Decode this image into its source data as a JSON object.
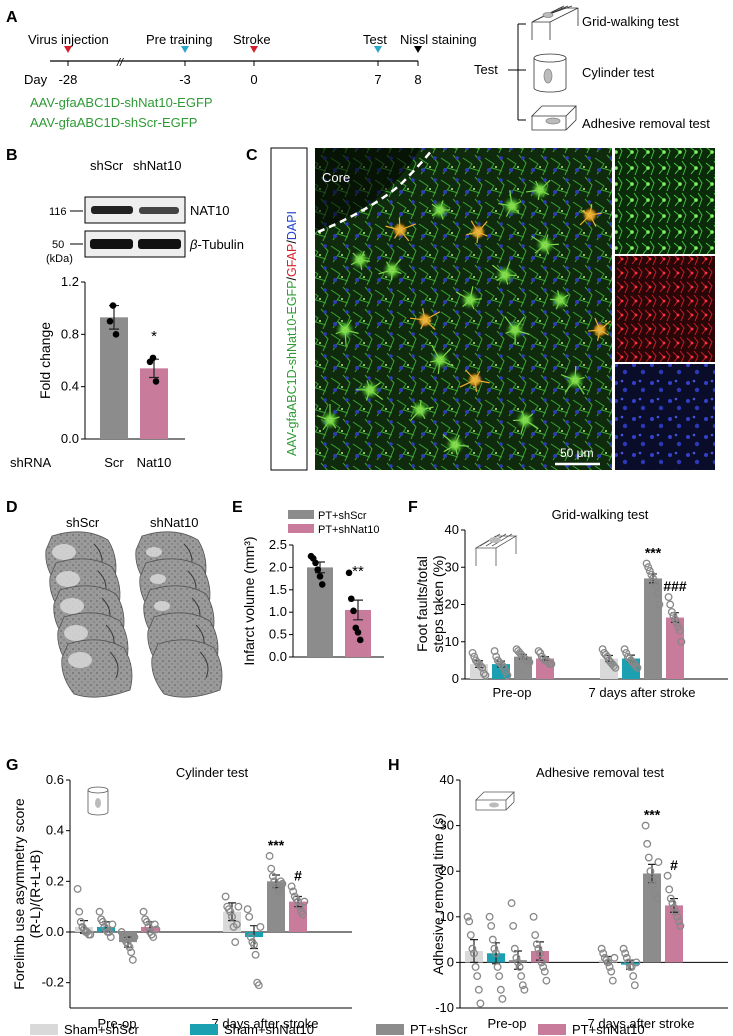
{
  "colors": {
    "sham_shScr": "#d9d9d9",
    "sham_shNat10": "#1aa0b0",
    "pt_shScr": "#8c8c8c",
    "pt_shNat10": "#c97b9c",
    "green_text": "#2e9a35",
    "red_marker": "#d4202c",
    "blue_marker": "#2aa7c9",
    "black": "#000000"
  },
  "panels": {
    "A": {
      "letter": "A",
      "timeline_events": [
        {
          "label": "Virus injection",
          "day": "-28",
          "marker": "red"
        },
        {
          "label": "Pre training",
          "day": "-3",
          "marker": "blue"
        },
        {
          "label": "Stroke",
          "day": "0",
          "marker": "red"
        },
        {
          "label": "Test",
          "day": "7",
          "marker": "blue"
        },
        {
          "label": "Nissl staining",
          "day": "8",
          "marker": "black"
        }
      ],
      "day_label": "Day",
      "break_symbol": "//",
      "virus_1": "AAV-gfaABC1D-shNat10-EGFP",
      "virus_2": "AAV-gfaABC1D-shScr-EGFP",
      "test_label": "Test",
      "tests": [
        "Grid-walking test",
        "Cylinder test",
        "Adhesive removal test"
      ]
    },
    "B": {
      "letter": "B",
      "lane_labels": [
        "shScr",
        "shNat10"
      ],
      "mw_markers": [
        "116",
        "50",
        "(kDa)"
      ],
      "band_labels": [
        "NAT10",
        "β-Tubulin"
      ],
      "beta_symbol": "β",
      "tubulin_text": "-Tubulin",
      "row_label": "shRNA"
    },
    "C": {
      "letter": "C",
      "side_label_parts": [
        "AAV-gfaABC1D-shNat10-EGFP",
        "/",
        "GFAP",
        "/",
        "DAPI"
      ],
      "core_label": "Core",
      "scale_bar": "50 μm"
    },
    "D": {
      "letter": "D",
      "labels": [
        "shScr",
        "shNat10"
      ]
    },
    "E": {
      "letter": "E"
    },
    "F": {
      "letter": "F"
    },
    "G": {
      "letter": "G"
    },
    "H": {
      "letter": "H"
    }
  },
  "legend": {
    "items": [
      {
        "label": "Sham+shScr",
        "color": "#d9d9d9"
      },
      {
        "label": "Sham+shNat10",
        "color": "#1aa0b0"
      },
      {
        "label": "PT+shScr",
        "color": "#8c8c8c"
      },
      {
        "label": "PT+shNat10",
        "color": "#c97b9c"
      }
    ]
  },
  "chart_data": [
    {
      "panel": "B",
      "type": "bar",
      "categories": [
        "Scr",
        "Nat10"
      ],
      "values": [
        0.93,
        0.54
      ],
      "errors": [
        0.09,
        0.07
      ],
      "points": [
        [
          1.02,
          0.9,
          0.8
        ],
        [
          0.62,
          0.59,
          0.44
        ]
      ],
      "ylabel": "Fold change",
      "xlabel": "shRNA",
      "ylim": [
        0,
        1.2
      ],
      "yticks": [
        "0.0",
        "0.4",
        "0.8",
        "1.2"
      ],
      "annotations": [
        "",
        "*"
      ],
      "colors": [
        "#8c8c8c",
        "#c97b9c"
      ]
    },
    {
      "panel": "E",
      "type": "bar",
      "categories": [
        "PT+shScr",
        "PT+shNat10"
      ],
      "values": [
        2.0,
        1.05
      ],
      "errors": [
        0.12,
        0.22
      ],
      "points": [
        [
          2.25,
          2.2,
          2.1,
          1.95,
          1.8,
          1.62
        ],
        [
          1.88,
          1.3,
          1.03,
          0.65,
          0.55,
          0.38
        ]
      ],
      "ylabel": "Infarct volume (mm³)",
      "ylim": [
        0,
        2.5
      ],
      "yticks": [
        "0.0",
        "0.5",
        "1.0",
        "1.5",
        "2.0",
        "2.5"
      ],
      "legend": [
        "PT+shScr",
        "PT+shNat10"
      ],
      "legend_position": "top-right",
      "annotations": [
        "",
        "**"
      ],
      "colors": [
        "#8c8c8c",
        "#c97b9c"
      ]
    },
    {
      "panel": "F",
      "type": "bar",
      "title": "Grid-walking test",
      "groups": [
        "Pre-op",
        "7 days after stroke"
      ],
      "series": [
        {
          "name": "Sham+shScr",
          "values": [
            4.0,
            5.5
          ],
          "errors": [
            0.9,
            0.8
          ],
          "points": [
            [
              7,
              6,
              5,
              4.5,
              4,
              3.5,
              3,
              1.5,
              1
            ],
            [
              8,
              7,
              6.5,
              6,
              5,
              4.5,
              4,
              3.5,
              3
            ]
          ]
        },
        {
          "name": "Sham+shNat10",
          "values": [
            4.0,
            5.5
          ],
          "errors": [
            0.8,
            0.9
          ],
          "points": [
            [
              7.5,
              6,
              5,
              4.5,
              4,
              3.5,
              3,
              2,
              1
            ],
            [
              8,
              7,
              6,
              5.5,
              5,
              4.5,
              4,
              3.5,
              3
            ]
          ]
        },
        {
          "name": "PT+shScr",
          "values": [
            6.0,
            27.0
          ],
          "errors": [
            0.6,
            1.2
          ],
          "points": [
            [
              8,
              7.5,
              7,
              6.5,
              6,
              5.5,
              5,
              5,
              4.5
            ],
            [
              31,
              30,
              29,
              28,
              27,
              26,
              25,
              23,
              20
            ]
          ]
        },
        {
          "name": "PT+shNat10",
          "values": [
            5.5,
            16.5
          ],
          "errors": [
            0.5,
            1.3
          ],
          "points": [
            [
              7.5,
              7,
              6,
              5.5,
              5,
              5,
              4.5,
              4,
              4
            ],
            [
              22,
              20,
              18,
              17,
              16,
              15,
              14,
              13,
              10
            ]
          ]
        }
      ],
      "ylabel": "Foot faults/total steps taken (%)",
      "ylim": [
        0,
        40
      ],
      "yticks": [
        "0",
        "10",
        "20",
        "30",
        "40"
      ],
      "annotations": [
        {
          "group": 1,
          "series": 2,
          "text": "***"
        },
        {
          "group": 1,
          "series": 3,
          "text": "###"
        }
      ]
    },
    {
      "panel": "G",
      "type": "bar",
      "title": "Cylinder test",
      "groups": [
        "Pre-op",
        "7 days after stroke"
      ],
      "series": [
        {
          "name": "Sham+shScr",
          "values": [
            0.02,
            0.08
          ],
          "errors": [
            0.025,
            0.035
          ],
          "points": [
            [
              0.17,
              0.08,
              0.04,
              0.02,
              0.01,
              0.0,
              0.0,
              -0.01,
              -0.01
            ],
            [
              0.14,
              0.1,
              0.09,
              0.08,
              0.06,
              0.02,
              -0.04,
              0.03,
              0.1
            ]
          ]
        },
        {
          "name": "Sham+shNat10",
          "values": [
            0.02,
            -0.02
          ],
          "errors": [
            0.02,
            0.045
          ],
          "points": [
            [
              0.08,
              0.05,
              0.04,
              0.02,
              0.01,
              0.0,
              0.0,
              -0.02,
              0.03
            ],
            [
              0.09,
              0.06,
              -0.02,
              -0.04,
              -0.05,
              -0.09,
              -0.2,
              -0.21,
              0.02
            ]
          ]
        },
        {
          "name": "PT+shScr",
          "values": [
            -0.04,
            0.2
          ],
          "errors": [
            0.02,
            0.025
          ],
          "points": [
            [
              0.0,
              -0.02,
              -0.03,
              -0.04,
              -0.05,
              -0.06,
              -0.08,
              -0.11,
              -0.02
            ],
            [
              0.3,
              0.25,
              0.22,
              0.2,
              0.18,
              0.17,
              0.16,
              0.2,
              0.19
            ]
          ]
        },
        {
          "name": "PT+shNat10",
          "values": [
            0.02,
            0.12
          ],
          "errors": [
            0.02,
            0.02
          ],
          "points": [
            [
              0.08,
              0.05,
              0.04,
              0.02,
              0.0,
              -0.01,
              -0.02,
              0.03,
              0.01
            ],
            [
              0.18,
              0.16,
              0.14,
              0.13,
              0.12,
              0.1,
              0.08,
              0.07,
              0.12
            ]
          ]
        }
      ],
      "ylabel": "Forelimb use asymmetry score (R-L)/(R+L+B)",
      "ylim": [
        -0.3,
        0.6
      ],
      "yticks": [
        "-0.2",
        "0.0",
        "0.2",
        "0.4",
        "0.6"
      ],
      "annotations": [
        {
          "group": 1,
          "series": 2,
          "text": "***"
        },
        {
          "group": 1,
          "series": 3,
          "text": "#"
        }
      ]
    },
    {
      "panel": "H",
      "type": "bar",
      "title": "Adhesive removal test",
      "groups": [
        "Pre-op",
        "7 days after stroke"
      ],
      "series": [
        {
          "name": "Sham+shScr",
          "values": [
            2.5,
            0.5
          ],
          "errors": [
            2.5,
            0.8
          ],
          "points": [
            [
              10,
              9,
              6,
              3,
              2,
              -1,
              -3,
              -6,
              -9
            ],
            [
              3,
              2,
              1,
              0.5,
              0,
              -1,
              -2,
              -4,
              1
            ]
          ]
        },
        {
          "name": "Sham+shNat10",
          "values": [
            2.0,
            -0.5
          ],
          "errors": [
            2.3,
            1.0
          ],
          "points": [
            [
              10,
              8,
              5,
              3,
              2,
              -1,
              -3,
              -6,
              -8
            ],
            [
              3,
              2,
              1,
              0,
              -1,
              -1,
              -3,
              -5,
              0
            ]
          ]
        },
        {
          "name": "PT+shScr",
          "values": [
            0.5,
            19.5
          ],
          "errors": [
            2.0,
            2.0
          ],
          "points": [
            [
              13,
              8,
              3,
              1,
              0,
              -1,
              -3,
              -5,
              -6
            ],
            [
              30,
              26,
              23,
              20,
              18,
              17,
              15,
              14,
              22
            ]
          ]
        },
        {
          "name": "PT+shNat10",
          "values": [
            2.5,
            12.5
          ],
          "errors": [
            2.0,
            1.5
          ],
          "points": [
            [
              10,
              6,
              4,
              3,
              2,
              0,
              -1,
              -2,
              -4
            ],
            [
              19,
              16,
              14,
              13,
              12,
              11,
              10,
              9,
              8
            ]
          ]
        }
      ],
      "ylabel": "Adhesive removal time (s)",
      "ylim": [
        -10,
        40
      ],
      "yticks": [
        "-10",
        "0",
        "10",
        "20",
        "30",
        "40"
      ],
      "annotations": [
        {
          "group": 1,
          "series": 2,
          "text": "***"
        },
        {
          "group": 1,
          "series": 3,
          "text": "#"
        }
      ]
    }
  ]
}
